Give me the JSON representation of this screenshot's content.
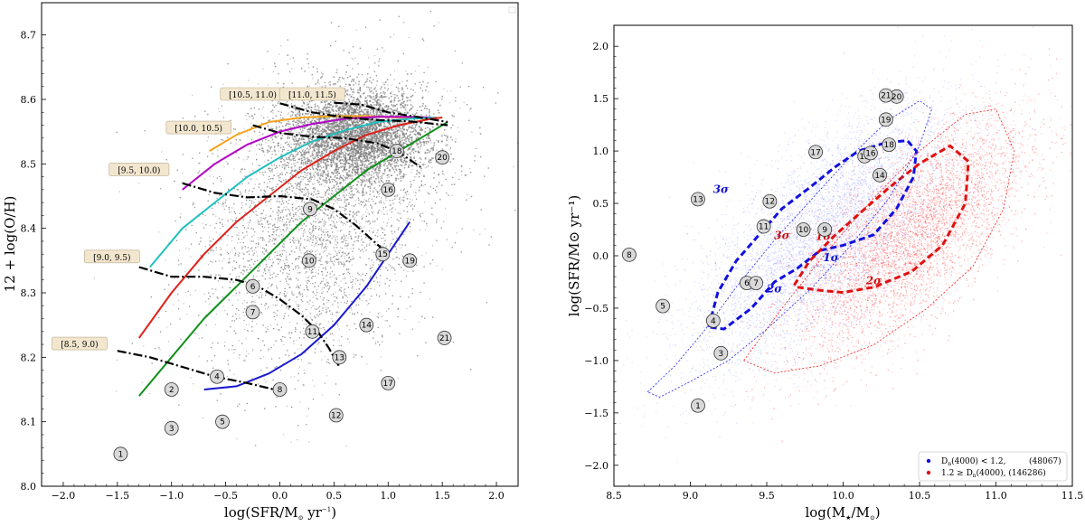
{
  "chart_data": [
    {
      "type": "scatter",
      "xlabel": "log(SFR/M",
      "xlabel_sub": "⊙",
      "xlabel_unit": " yr",
      "xlabel_exp": "−1",
      "xlabel_close": ")",
      "ylabel": "12 + log(O/H)",
      "xlim": [
        -2.2,
        2.2
      ],
      "ylim": [
        8.0,
        8.75
      ],
      "xticks": [
        -2.0,
        -1.5,
        -1.0,
        -0.5,
        0.0,
        0.5,
        1.0,
        1.5,
        2.0
      ],
      "xtick_labels": [
        "−2.0",
        "−1.5",
        "−1.0",
        "−0.5",
        "0.0",
        "0.5",
        "1.0",
        "1.5",
        "2.0"
      ],
      "yticks": [
        8.0,
        8.1,
        8.2,
        8.3,
        8.4,
        8.5,
        8.6,
        8.7
      ],
      "ytick_labels": [
        "8.0",
        "8.1",
        "8.2",
        "8.3",
        "8.4",
        "8.5",
        "8.6",
        "8.7"
      ],
      "background_cloud": {
        "color": "#8a8a8a",
        "center": [
          0.35,
          8.43
        ],
        "spread": [
          0.55,
          0.11
        ]
      },
      "numbered_points": [
        {
          "label": "1",
          "x": -1.47,
          "y": 8.05
        },
        {
          "label": "2",
          "x": -1.0,
          "y": 8.15
        },
        {
          "label": "3",
          "x": -1.0,
          "y": 8.09
        },
        {
          "label": "4",
          "x": -0.58,
          "y": 8.17
        },
        {
          "label": "5",
          "x": -0.53,
          "y": 8.1
        },
        {
          "label": "6",
          "x": -0.25,
          "y": 8.31
        },
        {
          "label": "7",
          "x": -0.25,
          "y": 8.27
        },
        {
          "label": "8",
          "x": 0.0,
          "y": 8.15
        },
        {
          "label": "9",
          "x": 0.28,
          "y": 8.43
        },
        {
          "label": "10",
          "x": 0.27,
          "y": 8.35
        },
        {
          "label": "11",
          "x": 0.3,
          "y": 8.24
        },
        {
          "label": "12",
          "x": 0.52,
          "y": 8.11
        },
        {
          "label": "13",
          "x": 0.55,
          "y": 8.2
        },
        {
          "label": "14",
          "x": 0.8,
          "y": 8.25
        },
        {
          "label": "15",
          "x": 0.95,
          "y": 8.36
        },
        {
          "label": "16",
          "x": 1.0,
          "y": 8.46
        },
        {
          "label": "17",
          "x": 1.0,
          "y": 8.16
        },
        {
          "label": "18",
          "x": 1.08,
          "y": 8.52
        },
        {
          "label": "19",
          "x": 1.2,
          "y": 8.35
        },
        {
          "label": "20",
          "x": 1.5,
          "y": 8.51
        },
        {
          "label": "21",
          "x": 1.52,
          "y": 8.23
        }
      ],
      "series": [
        {
          "name": "orange",
          "color": "#f5a31a",
          "x": [
            -0.65,
            -0.4,
            -0.1,
            0.2,
            0.5,
            0.8,
            1.1,
            1.35
          ],
          "y": [
            8.52,
            8.545,
            8.565,
            8.572,
            8.574,
            8.574,
            8.572,
            8.57
          ]
        },
        {
          "name": "magenta",
          "color": "#b400c8",
          "x": [
            -0.9,
            -0.6,
            -0.3,
            0.0,
            0.3,
            0.6,
            0.9,
            1.2,
            1.4
          ],
          "y": [
            8.46,
            8.5,
            8.53,
            8.55,
            8.562,
            8.57,
            8.573,
            8.573,
            8.572
          ]
        },
        {
          "name": "cyan",
          "color": "#1fc0c0",
          "x": [
            -1.2,
            -0.9,
            -0.6,
            -0.3,
            0.0,
            0.3,
            0.6,
            0.9,
            1.2,
            1.45
          ],
          "y": [
            8.34,
            8.4,
            8.44,
            8.48,
            8.51,
            8.535,
            8.552,
            8.565,
            8.57,
            8.572
          ]
        },
        {
          "name": "red",
          "color": "#e0201a",
          "x": [
            -1.3,
            -1.0,
            -0.7,
            -0.4,
            -0.1,
            0.2,
            0.5,
            0.8,
            1.1,
            1.4,
            1.5
          ],
          "y": [
            8.23,
            8.3,
            8.36,
            8.41,
            8.45,
            8.49,
            8.52,
            8.545,
            8.56,
            8.57,
            8.572
          ]
        },
        {
          "name": "green",
          "color": "#10901a",
          "x": [
            -1.3,
            -1.0,
            -0.7,
            -0.4,
            -0.1,
            0.2,
            0.5,
            0.8,
            1.1,
            1.4,
            1.55
          ],
          "y": [
            8.14,
            8.2,
            8.26,
            8.31,
            8.36,
            8.41,
            8.45,
            8.49,
            8.52,
            8.55,
            8.565
          ]
        },
        {
          "name": "blue",
          "color": "#1818d0",
          "x": [
            -0.7,
            -0.4,
            -0.1,
            0.2,
            0.5,
            0.8,
            1.0,
            1.2
          ],
          "y": [
            8.15,
            8.155,
            8.175,
            8.205,
            8.25,
            8.31,
            8.36,
            8.41
          ]
        },
        {
          "name": "bin [8.5, 9.0)",
          "color": "#000000",
          "dash": true,
          "x": [
            -1.5,
            -1.2,
            -0.9,
            -0.6,
            -0.3,
            -0.05
          ],
          "y": [
            8.21,
            8.2,
            8.185,
            8.17,
            8.16,
            8.15
          ]
        },
        {
          "name": "bin [9.0, 9.5)",
          "color": "#000000",
          "dash": true,
          "x": [
            -1.3,
            -1.0,
            -0.7,
            -0.4,
            -0.2,
            0.0,
            0.2,
            0.35,
            0.45,
            0.55
          ],
          "y": [
            8.34,
            8.325,
            8.325,
            8.32,
            8.31,
            8.29,
            8.265,
            8.24,
            8.215,
            8.185
          ]
        },
        {
          "name": "bin [9.5, 10.0)",
          "color": "#000000",
          "dash": true,
          "x": [
            -0.9,
            -0.6,
            -0.3,
            0.0,
            0.3,
            0.5,
            0.7,
            0.9,
            1.0
          ],
          "y": [
            8.47,
            8.455,
            8.448,
            8.45,
            8.445,
            8.43,
            8.405,
            8.375,
            8.36
          ]
        },
        {
          "name": "bin [10.0, 10.5)",
          "color": "#000000",
          "dash": true,
          "x": [
            -0.25,
            0.0,
            0.3,
            0.6,
            0.9,
            1.1,
            1.3
          ],
          "y": [
            8.56,
            8.548,
            8.542,
            8.54,
            8.532,
            8.518,
            8.495
          ]
        },
        {
          "name": "bin [10.5, 11.0)",
          "color": "#000000",
          "dash": true,
          "x": [
            0.0,
            0.3,
            0.6,
            0.9,
            1.2,
            1.55
          ],
          "y": [
            8.594,
            8.58,
            8.572,
            8.568,
            8.566,
            8.56
          ]
        },
        {
          "name": "bin [11.0, 11.5)",
          "color": "#000000",
          "dash": true,
          "x": [
            0.5,
            0.75,
            1.0,
            1.3,
            1.55
          ],
          "y": [
            8.595,
            8.592,
            8.58,
            8.572,
            8.565
          ]
        }
      ],
      "annotations": [
        {
          "text": "[8.5, 9.0)",
          "x": -1.85,
          "y": 8.22
        },
        {
          "text": "[9.0, 9.5)",
          "x": -1.55,
          "y": 8.355
        },
        {
          "text": "[9.5, 10.0)",
          "x": -1.3,
          "y": 8.49
        },
        {
          "text": "[10.0, 10.5)",
          "x": -0.75,
          "y": 8.555
        },
        {
          "text": "[10.5, 11.0)",
          "x": -0.25,
          "y": 8.607
        },
        {
          "text": "[11.0, 11.5)",
          "x": 0.3,
          "y": 8.607
        }
      ]
    },
    {
      "type": "scatter",
      "xlabel": "log(M",
      "xlabel_sub": "★",
      "xlabel_mid": "/M",
      "xlabel_sub2": "⊙",
      "xlabel_close": ")",
      "ylabel": "log(SFR/M⊙ yr⁻¹)",
      "xlim": [
        8.5,
        11.5
      ],
      "ylim": [
        -2.2,
        2.2
      ],
      "xticks": [
        8.5,
        9.0,
        9.5,
        10.0,
        10.5,
        11.0,
        11.5
      ],
      "xtick_labels": [
        "8.5",
        "9.0",
        "9.5",
        "10.0",
        "10.5",
        "11.0",
        "11.5"
      ],
      "yticks": [
        -2.0,
        -1.5,
        -1.0,
        -0.5,
        0.0,
        0.5,
        1.0,
        1.5,
        2.0
      ],
      "ytick_labels": [
        "−2.0",
        "−1.5",
        "−1.0",
        "−0.5",
        "0.0",
        "0.5",
        "1.0",
        "1.5",
        "2.0"
      ],
      "clouds": [
        {
          "name": "blue",
          "color": "#3040ff",
          "center": [
            9.85,
            0.2
          ],
          "spread": [
            0.42,
            0.55
          ]
        },
        {
          "name": "red",
          "color": "#ff2020",
          "center": [
            10.45,
            0.2
          ],
          "spread": [
            0.38,
            0.5
          ]
        }
      ],
      "legend": [
        {
          "label": "D",
          "sub": "n",
          "rest": "(4000) < 1.2,",
          "count": "(48067)",
          "color": "#1010e0"
        },
        {
          "label": "1.2 ≥ D",
          "sub": "n",
          "rest": "(4000), (146286)",
          "count": "",
          "color": "#e01010"
        }
      ],
      "sigma_labels": [
        {
          "text": "3σ",
          "color": "#1010d0",
          "x": 9.2,
          "y": 0.6
        },
        {
          "text": "2σ",
          "color": "#1010d0",
          "x": 9.55,
          "y": -0.35
        },
        {
          "text": "1σ",
          "color": "#1010d0",
          "x": 9.92,
          "y": -0.05
        },
        {
          "text": "3σ",
          "color": "#d01010",
          "x": 9.6,
          "y": 0.16
        },
        {
          "text": "1σ",
          "color": "#d01010",
          "x": 9.87,
          "y": 0.15
        },
        {
          "text": "2σ",
          "color": "#d01010",
          "x": 10.2,
          "y": -0.27
        }
      ],
      "numbered_points": [
        {
          "label": "1",
          "x": 9.05,
          "y": -1.43
        },
        {
          "label": "3",
          "x": 9.2,
          "y": -0.93
        },
        {
          "label": "4",
          "x": 9.15,
          "y": -0.62
        },
        {
          "label": "5",
          "x": 8.82,
          "y": -0.48
        },
        {
          "label": "6",
          "x": 9.37,
          "y": -0.26
        },
        {
          "label": "7",
          "x": 9.43,
          "y": -0.26
        },
        {
          "label": "8",
          "x": 8.6,
          "y": 0.01
        },
        {
          "label": "9",
          "x": 9.88,
          "y": 0.25
        },
        {
          "label": "10",
          "x": 9.74,
          "y": 0.25
        },
        {
          "label": "11",
          "x": 9.48,
          "y": 0.28
        },
        {
          "label": "12",
          "x": 9.52,
          "y": 0.52
        },
        {
          "label": "13",
          "x": 9.05,
          "y": 0.54
        },
        {
          "label": "14",
          "x": 10.24,
          "y": 0.77
        },
        {
          "label": "15",
          "x": 10.14,
          "y": 0.95
        },
        {
          "label": "16",
          "x": 10.18,
          "y": 0.98
        },
        {
          "label": "17",
          "x": 9.82,
          "y": 0.99
        },
        {
          "label": "18",
          "x": 10.3,
          "y": 1.06
        },
        {
          "label": "19",
          "x": 10.28,
          "y": 1.3
        },
        {
          "label": "20",
          "x": 10.35,
          "y": 1.52
        },
        {
          "label": "21",
          "x": 10.28,
          "y": 1.53
        }
      ],
      "contours": [
        {
          "color": "#1010e0",
          "level": "thick",
          "x": [
            9.12,
            9.18,
            9.3,
            9.45,
            9.6,
            9.78,
            9.95,
            10.1,
            10.28,
            10.42,
            10.48,
            10.46,
            10.35,
            10.2,
            10.0,
            9.85,
            9.7,
            9.55,
            9.4,
            9.22,
            9.12
          ],
          "y": [
            -0.68,
            -0.35,
            -0.05,
            0.2,
            0.45,
            0.65,
            0.85,
            1.0,
            1.08,
            1.1,
            1.0,
            0.75,
            0.45,
            0.2,
            0.1,
            0.05,
            -0.12,
            -0.25,
            -0.5,
            -0.7,
            -0.68
          ]
        },
        {
          "color": "#e01010",
          "level": "thick",
          "x": [
            9.68,
            9.78,
            9.95,
            10.12,
            10.3,
            10.5,
            10.7,
            10.82,
            10.8,
            10.65,
            10.45,
            10.2,
            10.0,
            9.85,
            9.7,
            9.68
          ],
          "y": [
            -0.28,
            -0.05,
            0.2,
            0.42,
            0.65,
            0.88,
            1.05,
            0.9,
            0.5,
            0.1,
            -0.15,
            -0.3,
            -0.35,
            -0.33,
            -0.3,
            -0.28
          ]
        },
        {
          "color": "#2020f0",
          "level": "thin",
          "x": [
            8.72,
            8.9,
            9.1,
            9.3,
            9.55,
            9.8,
            10.05,
            10.3,
            10.5,
            10.58,
            10.5,
            10.3,
            10.05,
            9.8,
            9.5,
            9.25,
            9.0,
            8.8,
            8.72
          ],
          "y": [
            -1.3,
            -1.05,
            -0.7,
            -0.3,
            0.15,
            0.55,
            0.95,
            1.3,
            1.48,
            1.4,
            1.05,
            0.55,
            0.1,
            -0.3,
            -0.7,
            -1.0,
            -1.2,
            -1.35,
            -1.3
          ]
        },
        {
          "color": "#f02020",
          "level": "thin",
          "x": [
            9.35,
            9.6,
            9.9,
            10.2,
            10.5,
            10.8,
            11.0,
            11.12,
            11.05,
            10.85,
            10.55,
            10.2,
            9.85,
            9.55,
            9.35
          ],
          "y": [
            -1.0,
            -0.5,
            0.05,
            0.55,
            1.0,
            1.35,
            1.4,
            1.0,
            0.45,
            -0.1,
            -0.5,
            -0.85,
            -1.05,
            -1.12,
            -1.0
          ]
        }
      ]
    }
  ]
}
